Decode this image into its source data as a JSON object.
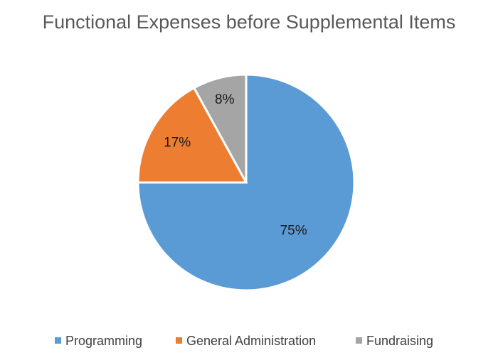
{
  "chart_data": {
    "type": "pie",
    "title": "Functional Expenses before Supplemental Items",
    "legend_position": "bottom",
    "series": [
      {
        "name": "",
        "categories": [
          "Programming",
          "General Administration",
          "Fundraising"
        ],
        "values": [
          75,
          17,
          8
        ],
        "labels": [
          "75%",
          "17%",
          "8%"
        ],
        "colors": [
          "#5b9bd5",
          "#ed7d31",
          "#a5a5a5"
        ]
      }
    ]
  }
}
